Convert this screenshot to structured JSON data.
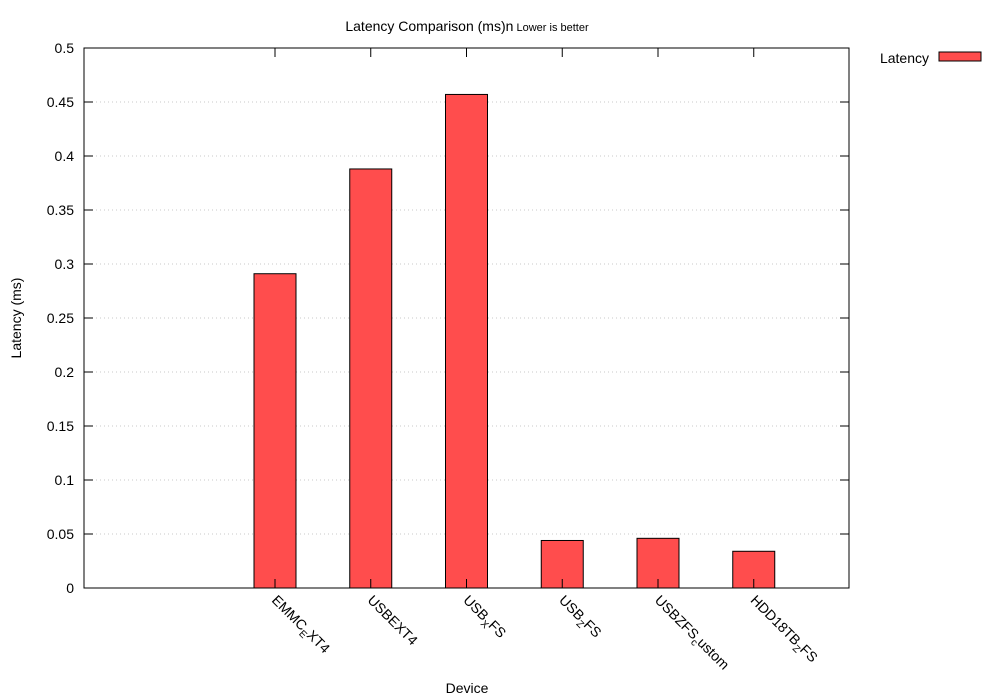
{
  "chart_data": {
    "type": "bar",
    "title": "Latency Comparison (ms)n",
    "subtitle": "Lower is better",
    "xlabel": "Device",
    "ylabel": "Latency (ms)",
    "ylim": [
      0,
      0.5
    ],
    "yticks": [
      "0",
      "0.05",
      "0.1",
      "0.15",
      "0.2",
      "0.25",
      "0.3",
      "0.35",
      "0.4",
      "0.45",
      "0.5"
    ],
    "grid": true,
    "legend_position": "top-right outside",
    "categories": [
      {
        "base": "",
        "sub": ""
      },
      {
        "base": "EMMC",
        "sub": "E",
        "rest": "XT4"
      },
      {
        "base": "USBEXT4",
        "sub": "",
        "rest": ""
      },
      {
        "base": "USB",
        "sub": "X",
        "rest": "FS"
      },
      {
        "base": "USB",
        "sub": "Z",
        "rest": "FS"
      },
      {
        "base": "USBZFS",
        "sub": "c",
        "rest": "ustom"
      },
      {
        "base": "HDD18TB",
        "sub": "Z",
        "rest": "FS"
      }
    ],
    "series": [
      {
        "name": "Latency",
        "color": "#ff4d4d",
        "values": [
          0,
          0.291,
          0.388,
          0.457,
          0.044,
          0.046,
          0.034
        ]
      }
    ]
  }
}
